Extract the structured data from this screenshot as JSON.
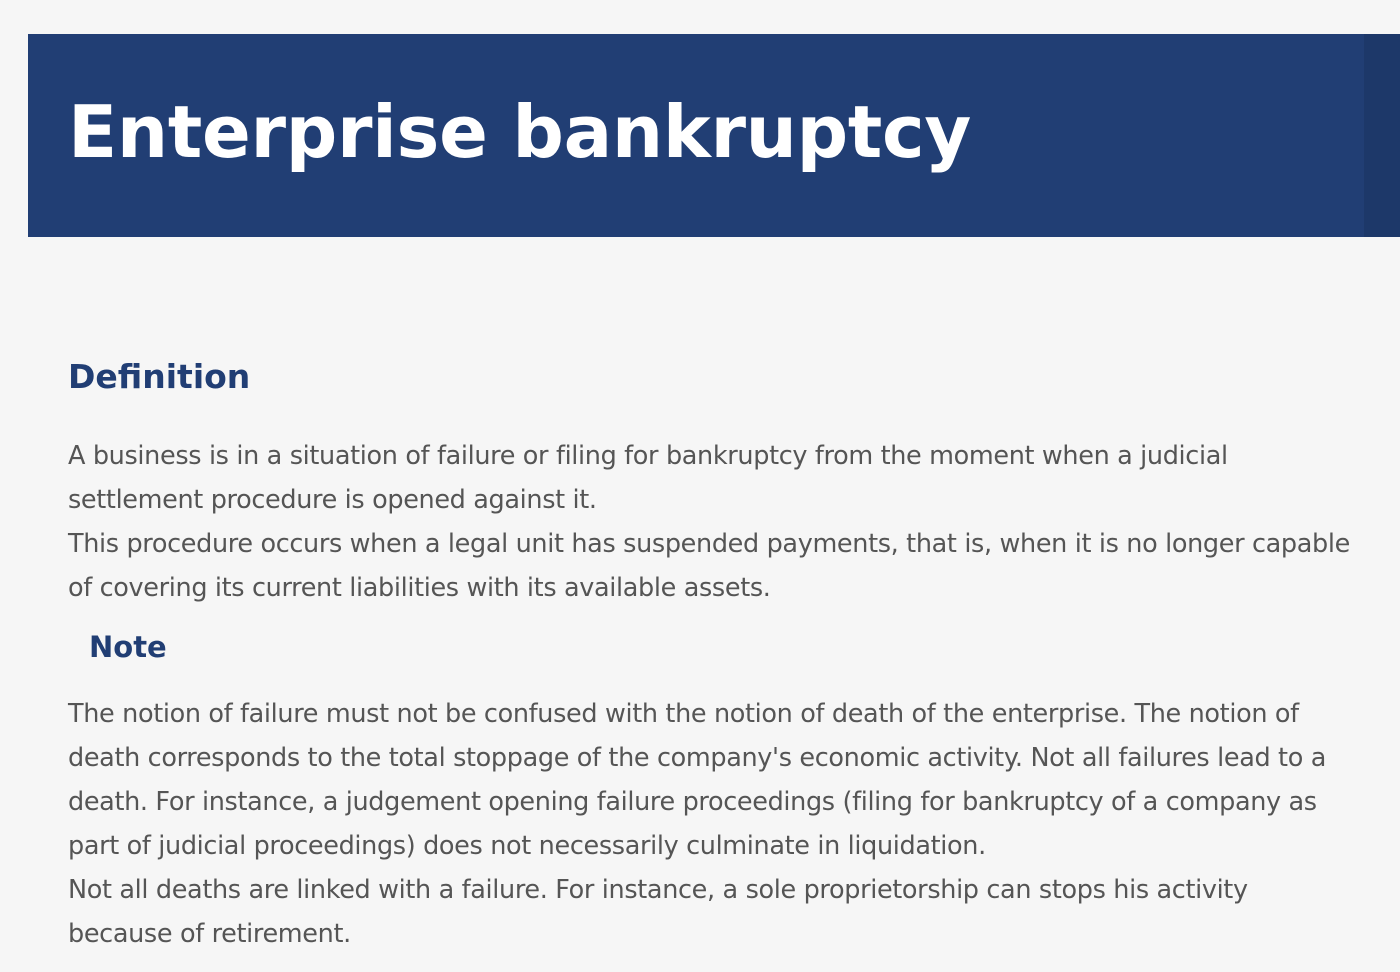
{
  "header": {
    "title": "Enterprise bankruptcy"
  },
  "definition": {
    "heading": "Definition",
    "lines": [
      "A business is in a situation of failure or filing for bankruptcy from the moment when a judicial",
      "settlement procedure is opened against it.",
      "This procedure occurs when a legal unit has suspended payments, that is, when it is no longer capable",
      "of covering its current liabilities with its available assets."
    ]
  },
  "note": {
    "heading": "Note",
    "lines": [
      "The notion of failure must not be confused with the notion of death of the enterprise. The notion of",
      "death corresponds to the total stoppage of the company's economic activity. Not all failures lead to a",
      "death. For instance, a judgement opening failure proceedings (filing for bankruptcy of a company as",
      "part of judicial proceedings) does not necessarily culminate in liquidation.",
      "Not all deaths are linked with a failure. For instance, a sole proprietorship can stops his activity",
      "because of retirement."
    ]
  },
  "colors": {
    "banner": "#213e74",
    "banner_edge": "#1d3869",
    "heading": "#213e74",
    "body_text": "#555555",
    "background": "#f6f6f6"
  }
}
